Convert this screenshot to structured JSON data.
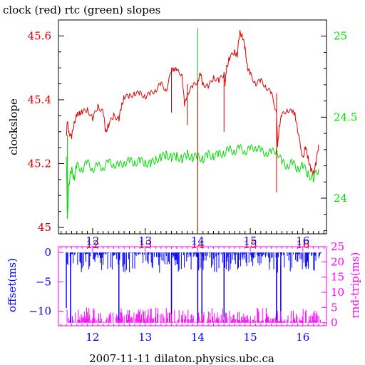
{
  "title": "clock (red) rtc (green) slopes",
  "footer": "2007-11-11 dilaton.physics.ubc.ca",
  "colors": {
    "clock": "#dd0000",
    "rtc": "#00dd00",
    "offset": "#0000ff",
    "roundtrip": "#ff00ff",
    "frame_top": "#000000",
    "frame_bottom": "#ff00ff"
  },
  "chart_data": [
    {
      "type": "line",
      "panel": "top",
      "title": "clock (red) rtc (green) slopes",
      "xlabel": "",
      "ylabel": "clockslope",
      "xlim": [
        11.35,
        16.45
      ],
      "ylim_left": [
        44.98,
        45.65
      ],
      "ylim_right": [
        23.78,
        25.1
      ],
      "x_ticks": [
        12,
        13,
        14,
        15,
        16
      ],
      "y_ticks_left": [
        45,
        45.2,
        45.4,
        45.6
      ],
      "y_ticks_right": [
        24,
        24.5,
        25
      ],
      "grid": false,
      "series": [
        {
          "axis": "left",
          "color": "#dd0000",
          "x": [
            11.5,
            11.52,
            11.55,
            11.6,
            11.65,
            11.7,
            11.75,
            11.8,
            11.9,
            12.0,
            12.1,
            12.2,
            12.25,
            12.3,
            12.4,
            12.5,
            12.55,
            12.6,
            12.7,
            12.8,
            12.9,
            13.0,
            13.1,
            13.2,
            13.3,
            13.4,
            13.5,
            13.55,
            13.6,
            13.7,
            13.75,
            13.8,
            13.9,
            14.0,
            14.05,
            14.1,
            14.2,
            14.3,
            14.4,
            14.5,
            14.52,
            14.55,
            14.6,
            14.7,
            14.75,
            14.8,
            14.85,
            14.9,
            14.95,
            15.0,
            15.1,
            15.2,
            15.3,
            15.4,
            15.5,
            15.52,
            15.55,
            15.6,
            15.7,
            15.8,
            15.85,
            15.9,
            16.0,
            16.05,
            16.1,
            16.15,
            16.2,
            16.25,
            16.3
          ],
          "values": [
            45.29,
            45.33,
            45.3,
            45.28,
            45.33,
            45.35,
            45.36,
            45.36,
            45.37,
            45.34,
            45.38,
            45.36,
            45.3,
            45.32,
            45.35,
            45.34,
            45.38,
            45.41,
            45.41,
            45.42,
            45.42,
            45.41,
            45.42,
            45.43,
            45.45,
            45.43,
            45.49,
            45.5,
            45.49,
            45.48,
            45.38,
            45.42,
            45.44,
            45.46,
            45.48,
            45.45,
            45.44,
            45.47,
            45.46,
            45.48,
            45.45,
            45.5,
            45.53,
            45.55,
            45.54,
            45.61,
            45.6,
            45.56,
            45.5,
            45.48,
            45.45,
            45.46,
            45.44,
            45.42,
            45.36,
            45.25,
            45.32,
            45.35,
            45.37,
            45.36,
            45.36,
            45.3,
            45.22,
            45.25,
            45.22,
            45.18,
            45.17,
            45.2,
            45.26
          ]
        },
        {
          "axis": "right",
          "color": "#00dd00",
          "x": [
            11.5,
            11.52,
            11.55,
            11.6,
            11.65,
            11.7,
            11.8,
            11.9,
            12.0,
            12.1,
            12.2,
            12.3,
            12.4,
            12.5,
            12.6,
            12.7,
            12.8,
            12.9,
            13.0,
            13.1,
            13.2,
            13.3,
            13.4,
            13.5,
            13.6,
            13.7,
            13.8,
            13.9,
            14.0,
            14.1,
            14.2,
            14.3,
            14.4,
            14.5,
            14.6,
            14.7,
            14.8,
            14.9,
            15.0,
            15.1,
            15.2,
            15.3,
            15.4,
            15.5,
            15.6,
            15.7,
            15.8,
            15.9,
            16.0,
            16.1,
            16.2,
            16.3
          ],
          "values": [
            24.28,
            23.85,
            24.1,
            24.17,
            24.13,
            24.2,
            24.18,
            24.22,
            24.18,
            24.2,
            24.19,
            24.22,
            24.21,
            24.2,
            24.22,
            24.23,
            24.22,
            24.23,
            24.22,
            24.21,
            24.24,
            24.25,
            24.27,
            24.25,
            24.26,
            24.24,
            24.27,
            24.25,
            24.26,
            24.24,
            24.27,
            24.26,
            24.27,
            24.28,
            24.3,
            24.29,
            24.31,
            24.29,
            24.3,
            24.32,
            24.29,
            24.28,
            24.28,
            24.3,
            24.22,
            24.2,
            24.22,
            24.18,
            24.2,
            24.15,
            24.12,
            24.18
          ]
        }
      ]
    },
    {
      "type": "bar",
      "panel": "bottom",
      "xlabel": "2007-11-11 dilaton.physics.ubc.ca",
      "ylabel_left": "offset(ms)",
      "ylabel_right": "rnd-trip(ms)",
      "xlim": [
        11.35,
        16.45
      ],
      "ylim_left": [
        -12.5,
        1.0
      ],
      "ylim_right": [
        -1,
        25
      ],
      "x_ticks": [
        12,
        13,
        14,
        15,
        16
      ],
      "y_ticks_left": [
        0,
        -5,
        -10
      ],
      "y_ticks_right": [
        0,
        5,
        10,
        15,
        20,
        25
      ],
      "series": [
        {
          "axis": "left",
          "color": "#0000ff",
          "baseline": 0,
          "typical_range": [
            -3.5,
            0
          ],
          "spikes": [
            {
              "x": 11.5,
              "value": -9.5
            },
            {
              "x": 11.58,
              "value": -12.0
            },
            {
              "x": 12.5,
              "value": -11.5
            },
            {
              "x": 13.5,
              "value": -10.5
            },
            {
              "x": 14.0,
              "value": -11.5
            },
            {
              "x": 14.08,
              "value": -10.5
            },
            {
              "x": 14.5,
              "value": -11.0
            },
            {
              "x": 15.5,
              "value": -11.5
            },
            {
              "x": 15.58,
              "value": -10.0
            }
          ]
        },
        {
          "axis": "right",
          "color": "#ff00ff",
          "baseline": 0,
          "typical_range": [
            0,
            5
          ],
          "spikes": [
            {
              "x": 11.58,
              "value": 23.0
            },
            {
              "x": 12.5,
              "value": 21.0
            },
            {
              "x": 13.5,
              "value": 20.5
            },
            {
              "x": 14.0,
              "value": 19.0
            },
            {
              "x": 14.08,
              "value": 21.0
            },
            {
              "x": 14.5,
              "value": 22.0
            },
            {
              "x": 15.5,
              "value": 20.5
            },
            {
              "x": 15.58,
              "value": 19.0
            }
          ]
        }
      ]
    }
  ]
}
